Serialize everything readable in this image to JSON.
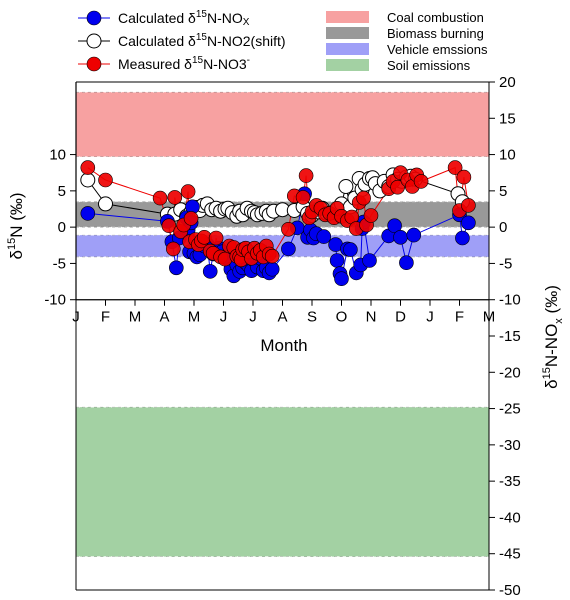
{
  "chart_data": {
    "type": "scatter",
    "xlabel": "Month",
    "x_tick_labels": [
      "J",
      "F",
      "M",
      "A",
      "M",
      "J",
      "J",
      "A",
      "S",
      "O",
      "N",
      "D",
      "J",
      "F",
      "M"
    ],
    "left_axis": {
      "label": "δ15N (‰)",
      "ticks": [
        10,
        5,
        0,
        -5,
        -10
      ],
      "range": [
        -10,
        20
      ]
    },
    "right_axis": {
      "label": "δ15N-NOx (‰)",
      "ticks": [
        20,
        15,
        10,
        5,
        0,
        -5,
        -10,
        -15,
        -20,
        -25,
        -30,
        -35,
        -40,
        -45,
        -50
      ],
      "range": [
        -50,
        20
      ]
    },
    "bands": [
      {
        "name": "Coal combustion",
        "ymin": 9.7,
        "ymax": 18.6,
        "color": "#f7a1a1"
      },
      {
        "name": "Biomass burning",
        "ymin": 0,
        "ymax": 3.5,
        "color": "#999999"
      },
      {
        "name": "Vehicle emssions",
        "ymin": -4.1,
        "ymax": -1.1,
        "color": "#9f9ff7"
      },
      {
        "name": "Soil emissions",
        "ymin": -45.4,
        "ymax": -24.8,
        "color": "#a3d1a3"
      }
    ],
    "series": [
      {
        "name": "Calculated δ15N-NOx",
        "marker_fill": "#0000ee",
        "line_color": "#0000ee",
        "points": [
          [
            0.4,
            1.9
          ],
          [
            3.1,
            0.8
          ],
          [
            3.25,
            -2.0
          ],
          [
            3.4,
            -5.6
          ],
          [
            3.5,
            -1.5
          ],
          [
            3.75,
            1.3
          ],
          [
            3.8,
            -0.4
          ],
          [
            3.85,
            -3.4
          ],
          [
            3.9,
            0.6
          ],
          [
            3.95,
            2.8
          ],
          [
            4.0,
            -3.6
          ],
          [
            4.1,
            -4.1
          ],
          [
            4.2,
            -3.8
          ],
          [
            4.35,
            -2.6
          ],
          [
            4.45,
            -2.4
          ],
          [
            4.55,
            -6.1
          ],
          [
            4.65,
            -3.7
          ],
          [
            4.75,
            -3.1
          ],
          [
            4.85,
            -2.9
          ],
          [
            4.95,
            -3.4
          ],
          [
            5.05,
            -4.2
          ],
          [
            5.15,
            -4.3
          ],
          [
            5.25,
            -5.8
          ],
          [
            5.35,
            -6.7
          ],
          [
            5.45,
            -5.2
          ],
          [
            5.55,
            -6.1
          ],
          [
            5.65,
            -5.6
          ],
          [
            5.75,
            -4.9
          ],
          [
            5.85,
            -5.3
          ],
          [
            5.95,
            -6.0
          ],
          [
            6.05,
            -4.6
          ],
          [
            6.15,
            -5.5
          ],
          [
            6.25,
            -4.3
          ],
          [
            6.35,
            -6.0
          ],
          [
            6.45,
            -5.6
          ],
          [
            6.55,
            -6.3
          ],
          [
            6.65,
            -5.8
          ],
          [
            7.2,
            -3.0
          ],
          [
            7.5,
            -0.1
          ],
          [
            7.75,
            4.6
          ],
          [
            7.85,
            -1.4
          ],
          [
            7.95,
            -0.4
          ],
          [
            8.05,
            -1.5
          ],
          [
            8.15,
            -0.9
          ],
          [
            8.4,
            -1.3
          ],
          [
            8.8,
            -2.4
          ],
          [
            8.85,
            -4.6
          ],
          [
            8.95,
            -6.4
          ],
          [
            9.0,
            -7.1
          ],
          [
            9.2,
            -3.0
          ],
          [
            9.3,
            -3.1
          ],
          [
            9.5,
            -6.3
          ],
          [
            9.65,
            -5.2
          ],
          [
            9.7,
            -0.2
          ],
          [
            9.75,
            0.7
          ],
          [
            9.95,
            -4.6
          ],
          [
            10.6,
            -1.2
          ],
          [
            10.8,
            0.2
          ],
          [
            11.0,
            -1.4
          ],
          [
            11.2,
            -4.9
          ],
          [
            11.45,
            -1.1
          ],
          [
            13.0,
            1.7
          ],
          [
            13.1,
            -1.5
          ],
          [
            13.3,
            0.6
          ]
        ]
      },
      {
        "name": "Calculated δ15N-NO2(shift)",
        "marker_fill": "#ffffff",
        "line_color": "#000000",
        "points": [
          [
            0.4,
            6.5
          ],
          [
            1.0,
            3.2
          ],
          [
            3.1,
            1.8
          ],
          [
            3.35,
            1.8
          ],
          [
            3.55,
            2.4
          ],
          [
            3.75,
            1.5
          ],
          [
            3.9,
            2.1
          ],
          [
            4.0,
            2.5
          ],
          [
            4.1,
            2.7
          ],
          [
            4.2,
            2.3
          ],
          [
            4.3,
            3.0
          ],
          [
            4.45,
            3.2
          ],
          [
            4.6,
            2.4
          ],
          [
            4.75,
            2.6
          ],
          [
            4.9,
            2.2
          ],
          [
            5.05,
            2.5
          ],
          [
            5.15,
            2.6
          ],
          [
            5.3,
            2.0
          ],
          [
            5.45,
            1.5
          ],
          [
            5.55,
            2.2
          ],
          [
            5.65,
            1.7
          ],
          [
            5.8,
            2.6
          ],
          [
            5.95,
            2.2
          ],
          [
            6.05,
            2.0
          ],
          [
            6.15,
            1.7
          ],
          [
            6.3,
            1.9
          ],
          [
            6.45,
            2.2
          ],
          [
            6.55,
            1.7
          ],
          [
            6.7,
            2.2
          ],
          [
            7.0,
            2.4
          ],
          [
            7.4,
            2.3
          ],
          [
            7.7,
            2.8
          ],
          [
            7.85,
            1.9
          ],
          [
            8.0,
            1.6
          ],
          [
            8.2,
            2.1
          ],
          [
            8.35,
            2.6
          ],
          [
            8.5,
            1.9
          ],
          [
            8.7,
            2.0
          ],
          [
            8.85,
            2.4
          ],
          [
            9.0,
            3.2
          ],
          [
            9.15,
            5.6
          ],
          [
            9.3,
            2.8
          ],
          [
            9.45,
            4.0
          ],
          [
            9.6,
            6.7
          ],
          [
            9.7,
            5.2
          ],
          [
            9.8,
            5.9
          ],
          [
            9.95,
            6.7
          ],
          [
            10.05,
            6.8
          ],
          [
            10.15,
            6.0
          ],
          [
            10.3,
            5.0
          ],
          [
            10.45,
            6.3
          ],
          [
            10.6,
            5.6
          ],
          [
            10.75,
            7.2
          ],
          [
            10.9,
            6.6
          ],
          [
            11.05,
            6.3
          ],
          [
            11.2,
            6.9
          ],
          [
            11.35,
            7.0
          ],
          [
            11.5,
            6.6
          ],
          [
            12.95,
            4.6
          ],
          [
            13.1,
            3.5
          ]
        ]
      },
      {
        "name": "Measured δ15N-NO3-",
        "marker_fill": "#ee0000",
        "line_color": "#ee0000",
        "points": [
          [
            0.4,
            8.2
          ],
          [
            1.0,
            6.5
          ],
          [
            2.85,
            4.0
          ],
          [
            3.15,
            0.2
          ],
          [
            3.3,
            -3.0
          ],
          [
            3.35,
            4.1
          ],
          [
            3.55,
            -0.6
          ],
          [
            3.65,
            0.3
          ],
          [
            3.8,
            4.9
          ],
          [
            3.85,
            -2.0
          ],
          [
            3.9,
            1.2
          ],
          [
            4.05,
            -1.7
          ],
          [
            4.15,
            -2.4
          ],
          [
            4.25,
            -1.9
          ],
          [
            4.35,
            -1.4
          ],
          [
            4.55,
            -3.3
          ],
          [
            4.65,
            -3.6
          ],
          [
            4.75,
            -1.5
          ],
          [
            4.9,
            -4.1
          ],
          [
            5.05,
            -4.4
          ],
          [
            5.2,
            -2.6
          ],
          [
            5.35,
            -2.8
          ],
          [
            5.45,
            -4.0
          ],
          [
            5.55,
            -4.1
          ],
          [
            5.6,
            -4.5
          ],
          [
            5.65,
            -3.1
          ],
          [
            5.75,
            -2.9
          ],
          [
            5.85,
            -3.4
          ],
          [
            5.95,
            -4.3
          ],
          [
            6.05,
            -2.9
          ],
          [
            6.15,
            -3.6
          ],
          [
            6.25,
            -3.2
          ],
          [
            6.35,
            -4.1
          ],
          [
            6.45,
            -2.6
          ],
          [
            6.55,
            -3.7
          ],
          [
            6.65,
            -4.0
          ],
          [
            7.2,
            -0.3
          ],
          [
            7.4,
            4.3
          ],
          [
            7.7,
            4.1
          ],
          [
            7.8,
            7.1
          ],
          [
            7.9,
            1.3
          ],
          [
            8.0,
            2.1
          ],
          [
            8.15,
            3.0
          ],
          [
            8.3,
            2.6
          ],
          [
            8.45,
            1.7
          ],
          [
            8.6,
            1.9
          ],
          [
            8.75,
            1.3
          ],
          [
            8.85,
            2.6
          ],
          [
            9.0,
            1.5
          ],
          [
            9.2,
            0.9
          ],
          [
            9.35,
            1.4
          ],
          [
            9.5,
            -0.2
          ],
          [
            9.6,
            3.4
          ],
          [
            9.75,
            4.0
          ],
          [
            9.85,
            0.3
          ],
          [
            10.0,
            1.6
          ],
          [
            10.6,
            5.3
          ],
          [
            10.75,
            6.3
          ],
          [
            10.9,
            5.5
          ],
          [
            11.0,
            7.5
          ],
          [
            11.25,
            6.5
          ],
          [
            11.4,
            5.6
          ],
          [
            11.55,
            7.2
          ],
          [
            11.7,
            6.3
          ],
          [
            12.85,
            8.2
          ],
          [
            13.0,
            2.3
          ],
          [
            13.15,
            6.9
          ],
          [
            13.3,
            3.0
          ]
        ]
      }
    ]
  }
}
